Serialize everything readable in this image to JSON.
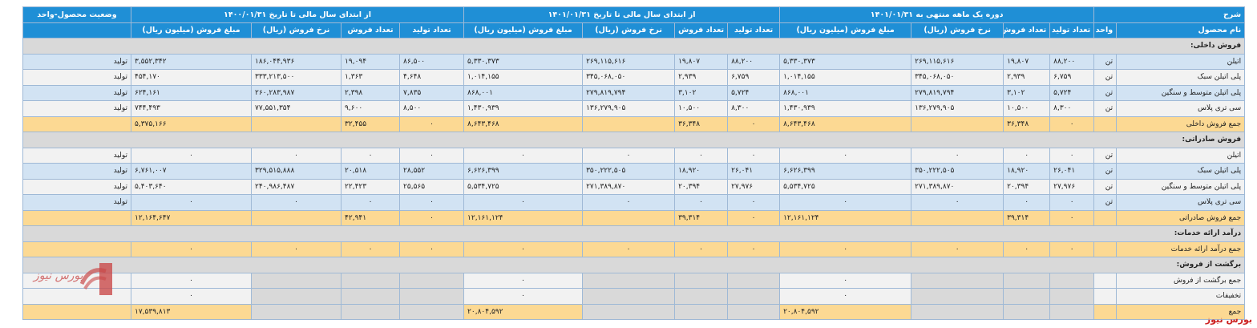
{
  "headers": {
    "desc": "شرح",
    "status_col": "وضعیت محصول-واحد",
    "period1": "دوره یک ماهه منتهی به ۱۴۰۱/۰۱/۳۱",
    "period2": "از ابتدای سال مالی تا تاریخ ۱۴۰۱/۰۱/۳۱",
    "period3": "از ابتدای سال مالی تا تاریخ ۱۴۰۰/۰۱/۳۱",
    "product_name": "نام محصول",
    "unit": "واحد",
    "prod_qty": "تعداد تولید",
    "sales_qty": "تعداد فروش",
    "sales_rate": "نرخ فروش (ریال)",
    "sales_amount": "مبلغ فروش (میلیون ریال)"
  },
  "rows": [
    {
      "type": "sec",
      "label": "فروش داخلی:"
    },
    {
      "type": "blue",
      "label": "اتیلن",
      "unit": "تن",
      "v": [
        "۸۸,۲۰۰",
        "۱۹,۸۰۷",
        "۲۶۹,۱۱۵,۶۱۶",
        "۵,۳۳۰,۳۷۳",
        "۸۸,۲۰۰",
        "۱۹,۸۰۷",
        "۲۶۹,۱۱۵,۶۱۶",
        "۵,۳۳۰,۳۷۳",
        "۸۶,۵۰۰",
        "۱۹,۰۹۴",
        "۱۸۶,۰۴۴,۹۳۶",
        "۳,۵۵۲,۳۴۲"
      ],
      "status": "تولید"
    },
    {
      "type": "white",
      "label": "پلی اتیلن سبک",
      "unit": "تن",
      "v": [
        "۶,۷۵۹",
        "۲,۹۳۹",
        "۳۴۵,۰۶۸,۰۵۰",
        "۱,۰۱۴,۱۵۵",
        "۶,۷۵۹",
        "۲,۹۳۹",
        "۳۴۵,۰۶۸,۰۵۰",
        "۱,۰۱۴,۱۵۵",
        "۴,۶۴۸",
        "۱,۳۶۳",
        "۳۳۳,۲۱۳,۵۰۰",
        "۴۵۴,۱۷۰"
      ],
      "status": "تولید"
    },
    {
      "type": "blue",
      "label": "پلی اتیلن متوسط و سنگین",
      "unit": "تن",
      "v": [
        "۵,۷۲۴",
        "۳,۱۰۲",
        "۲۷۹,۸۱۹,۷۹۴",
        "۸۶۸,۰۰۱",
        "۵,۷۲۴",
        "۳,۱۰۲",
        "۲۷۹,۸۱۹,۷۹۴",
        "۸۶۸,۰۰۱",
        "۷,۸۳۵",
        "۲,۳۹۸",
        "۲۶۰,۲۸۳,۹۸۷",
        "۶۲۴,۱۶۱"
      ],
      "status": "تولید"
    },
    {
      "type": "white",
      "label": "سی تری پلاس",
      "unit": "تن",
      "v": [
        "۸,۳۰۰",
        "۱۰,۵۰۰",
        "۱۳۶,۲۷۹,۹۰۵",
        "۱,۴۳۰,۹۳۹",
        "۸,۳۰۰",
        "۱۰,۵۰۰",
        "۱۳۶,۲۷۹,۹۰۵",
        "۱,۴۳۰,۹۳۹",
        "۸,۵۰۰",
        "۹,۶۰۰",
        "۷۷,۵۵۱,۳۵۴",
        "۷۴۴,۴۹۳"
      ],
      "status": "تولید"
    },
    {
      "type": "sum",
      "label": "جمع فروش داخلی",
      "unit": "",
      "v": [
        "۰",
        "۳۶,۳۴۸",
        "",
        "۸,۶۴۳,۴۶۸",
        "۰",
        "۳۶,۳۴۸",
        "",
        "۸,۶۴۳,۴۶۸",
        "۰",
        "۳۲,۴۵۵",
        "",
        "۵,۳۷۵,۱۶۶"
      ],
      "status": ""
    },
    {
      "type": "sec",
      "label": "فروش صادراتی:"
    },
    {
      "type": "white",
      "label": "اتیلن",
      "unit": "تن",
      "v": [
        "۰",
        "۰",
        "۰",
        "۰",
        "۰",
        "۰",
        "۰",
        "۰",
        "۰",
        "۰",
        "۰",
        "۰"
      ],
      "status": "تولید"
    },
    {
      "type": "blue",
      "label": "پلی اتیلن سبک",
      "unit": "تن",
      "v": [
        "۲۶,۰۴۱",
        "۱۸,۹۲۰",
        "۳۵۰,۲۲۲,۵۰۵",
        "۶,۶۲۶,۳۹۹",
        "۲۶,۰۴۱",
        "۱۸,۹۲۰",
        "۳۵۰,۲۲۲,۵۰۵",
        "۶,۶۲۶,۳۹۹",
        "۲۸,۵۵۲",
        "۲۰,۵۱۸",
        "۳۲۹,۵۱۵,۸۸۸",
        "۶,۷۶۱,۰۰۷"
      ],
      "status": "تولید"
    },
    {
      "type": "white",
      "label": "پلی اتیلن متوسط و سنگین",
      "unit": "تن",
      "v": [
        "۲۷,۹۷۶",
        "۲۰,۳۹۴",
        "۲۷۱,۳۸۹,۸۷۰",
        "۵,۵۳۴,۷۲۵",
        "۲۷,۹۷۶",
        "۲۰,۳۹۴",
        "۲۷۱,۳۸۹,۸۷۰",
        "۵,۵۳۴,۷۲۵",
        "۲۵,۵۶۵",
        "۲۲,۴۲۳",
        "۲۴۰,۹۸۶,۴۸۷",
        "۵,۴۰۳,۶۴۰"
      ],
      "status": "تولید"
    },
    {
      "type": "blue",
      "label": "سی تری پلاس",
      "unit": "تن",
      "v": [
        "۰",
        "۰",
        "۰",
        "۰",
        "۰",
        "۰",
        "۰",
        "۰",
        "۰",
        "۰",
        "۰",
        "۰"
      ],
      "status": "تولید"
    },
    {
      "type": "sum",
      "label": "جمع فروش صادراتی",
      "unit": "",
      "v": [
        "۰",
        "۳۹,۳۱۴",
        "",
        "۱۲,۱۶۱,۱۲۴",
        "۰",
        "۳۹,۳۱۴",
        "",
        "۱۲,۱۶۱,۱۲۴",
        "۰",
        "۴۲,۹۴۱",
        "",
        "۱۲,۱۶۴,۶۴۷"
      ],
      "status": ""
    },
    {
      "type": "sec",
      "label": "درآمد ارائه خدمات:"
    },
    {
      "type": "sum",
      "label": "جمع درآمد ارائه خدمات",
      "unit": "",
      "v": [
        "۰",
        "۰",
        "۰",
        "۰",
        "۰",
        "۰",
        "۰",
        "۰",
        "۰",
        "۰",
        "۰",
        "۰"
      ],
      "status": ""
    },
    {
      "type": "sec",
      "label": "برگشت از فروش:"
    },
    {
      "type": "white",
      "label": "جمع برگشت از فروش",
      "unit": "",
      "v": [
        "",
        "",
        "",
        "۰",
        "",
        "",
        "",
        "۰",
        "",
        "",
        "",
        "۰"
      ],
      "status": ""
    },
    {
      "type": "white",
      "label": "تخفیفات",
      "unit": "",
      "v": [
        "",
        "",
        "",
        "۰",
        "",
        "",
        "",
        "۰",
        "",
        "",
        "",
        "۰"
      ],
      "status": ""
    },
    {
      "type": "sum",
      "label": "جمع",
      "unit": "",
      "v": [
        "",
        "",
        "",
        "۲۰,۸۰۴,۵۹۲",
        "",
        "",
        "",
        "۲۰,۸۰۴,۵۹۲",
        "",
        "",
        "",
        "۱۷,۵۳۹,۸۱۳"
      ],
      "status": ""
    }
  ],
  "watermark": "بورس نیوز",
  "brand": "بورس نیوز",
  "colors": {
    "header": "#1f8fd6",
    "row_blue": "#d2e3f3",
    "row_white": "#f2f2f2",
    "section": "#d9d9d9",
    "sum": "#fcd993",
    "brand": "#cc2222"
  }
}
